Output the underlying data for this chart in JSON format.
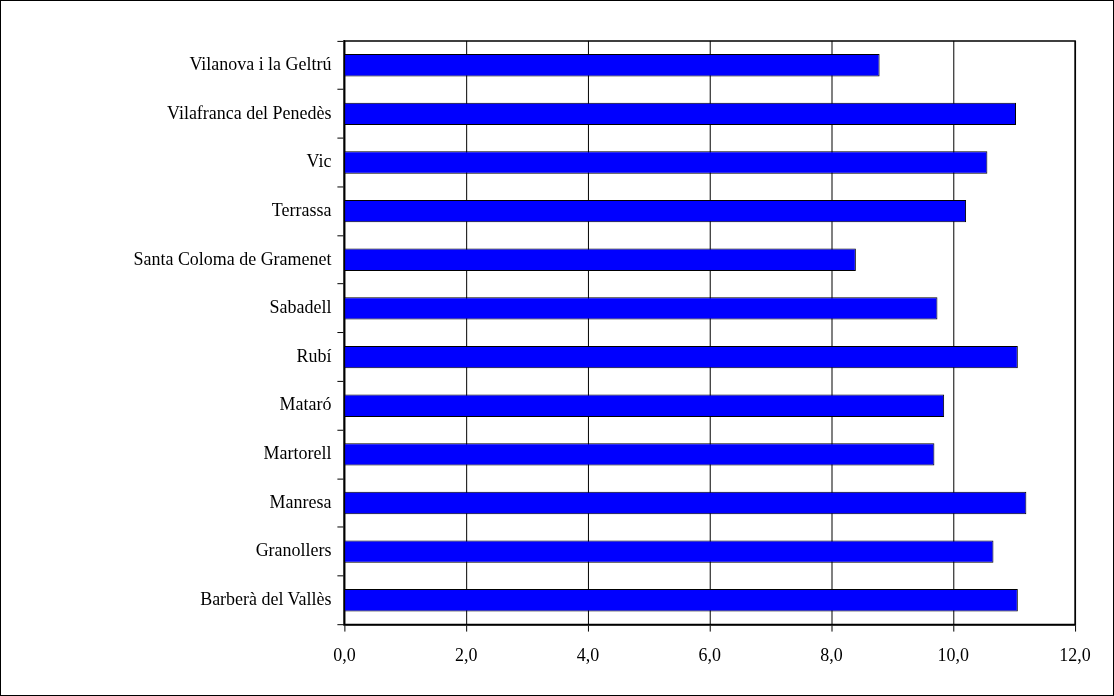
{
  "chart_data": {
    "type": "bar",
    "orientation": "horizontal",
    "categories": [
      "Vilanova i la Geltrú",
      "Vilafranca del Penedès",
      "Vic",
      "Terrassa",
      "Santa Coloma de Gramenet",
      "Sabadell",
      "Rubí",
      "Mataró",
      "Martorell",
      "Manresa",
      "Granollers",
      "Barberà del Vallès"
    ],
    "values": [
      8.79,
      11.03,
      10.56,
      10.21,
      8.4,
      9.74,
      11.06,
      9.85,
      9.69,
      11.2,
      10.66,
      11.06
    ],
    "color": "#0000ff",
    "xlim": [
      0,
      12
    ],
    "xticks": [
      {
        "value": 0,
        "label": "0,0"
      },
      {
        "value": 2,
        "label": "2,0"
      },
      {
        "value": 4,
        "label": "4,0"
      },
      {
        "value": 6,
        "label": "6,0"
      },
      {
        "value": 8,
        "label": "8,0"
      },
      {
        "value": 10,
        "label": "10,0"
      },
      {
        "value": 12,
        "label": "12,0"
      }
    ],
    "grid": "x",
    "legend": false
  }
}
